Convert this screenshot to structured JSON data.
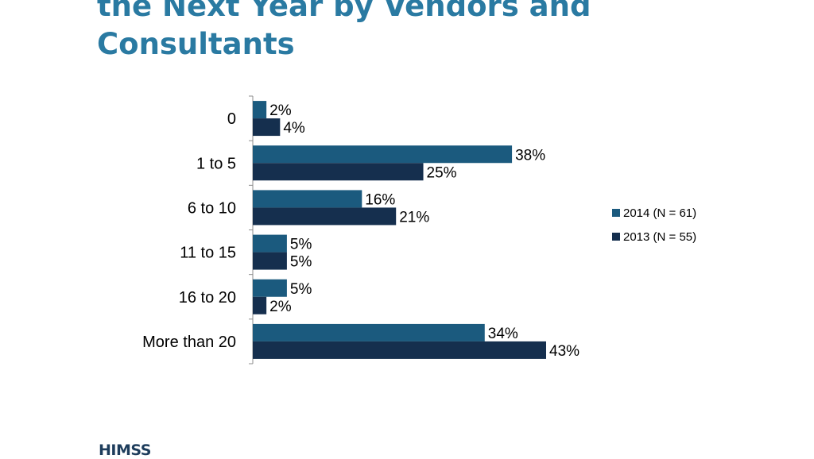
{
  "slide": {
    "title_lines": [
      "the Next Year by Vendors and",
      "Consultants"
    ]
  },
  "logo": {
    "text": "HIMSS"
  },
  "colors": {
    "series_2014": "#1b5a7e",
    "series_2013": "#152f4e",
    "axis": "#8c8c8c",
    "title": "#2a7aa2"
  },
  "chart_data": {
    "type": "bar",
    "orientation": "horizontal",
    "categories": [
      "0",
      "1 to 5",
      "6 to 10",
      "11 to 15",
      "16 to 20",
      "More than 20"
    ],
    "series": [
      {
        "name": "2014 (N = 61)",
        "values": [
          2,
          38,
          16,
          5,
          5,
          34
        ],
        "labels": [
          "2%",
          "38%",
          "16%",
          "5%",
          "5%",
          "34%"
        ],
        "color": "#1b5a7e"
      },
      {
        "name": "2013 (N = 55)",
        "values": [
          4,
          25,
          21,
          5,
          2,
          43
        ],
        "labels": [
          "4%",
          "25%",
          "21%",
          "5%",
          "2%",
          "43%"
        ],
        "color": "#152f4e"
      }
    ],
    "value_unit": "%",
    "xlim": [
      0,
      43
    ],
    "grid": false,
    "legend_position": "right"
  }
}
